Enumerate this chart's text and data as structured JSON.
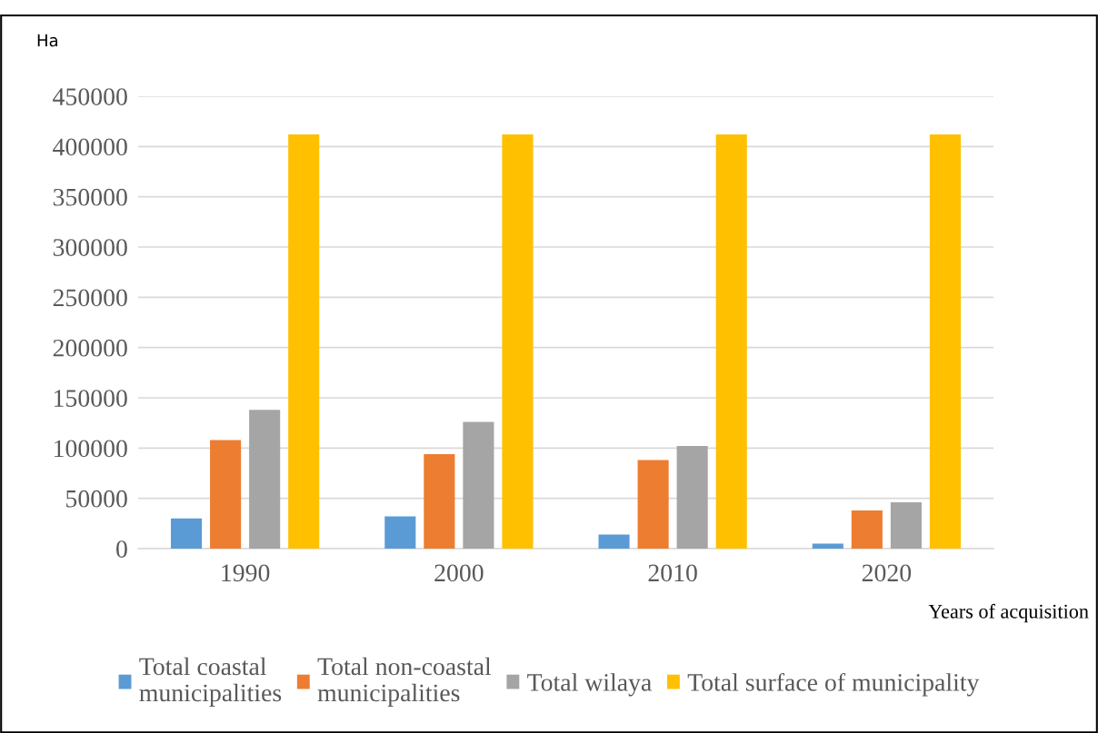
{
  "chart_data": {
    "type": "bar",
    "ylabel": "Ha",
    "xlabel": "Years of acquisition",
    "categories": [
      "1990",
      "2000",
      "2010",
      "2020"
    ],
    "series": [
      {
        "name": "Total coastal\nmunicipalities",
        "color": "#5b9bd5",
        "values": [
          30000,
          32000,
          14000,
          5000
        ]
      },
      {
        "name": "Total non-coastal\nmunicipalities",
        "color": "#ed7d31",
        "values": [
          108000,
          94000,
          88000,
          38000
        ]
      },
      {
        "name": "Total wilaya",
        "color": "#a5a5a5",
        "values": [
          138000,
          126000,
          102000,
          46000
        ]
      },
      {
        "name": "Total surface of municipality",
        "color": "#ffc000",
        "values": [
          412000,
          412000,
          412000,
          412000
        ]
      }
    ],
    "ylim": [
      0,
      450000
    ],
    "yticks": [
      0,
      50000,
      100000,
      150000,
      200000,
      250000,
      300000,
      350000,
      400000,
      450000
    ],
    "grid": "y",
    "legend": "bottom"
  }
}
